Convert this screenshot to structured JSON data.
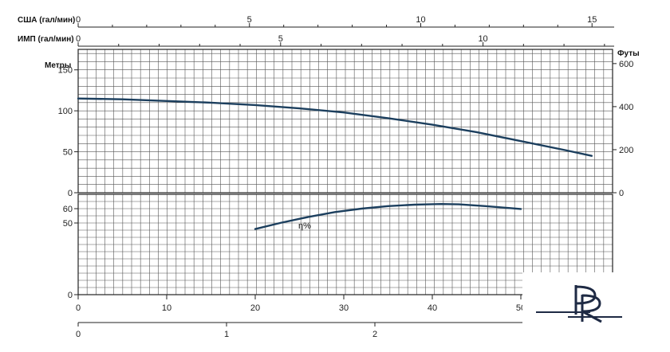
{
  "chart_data": [
    {
      "type": "line",
      "title": "",
      "ylabel_left": "Метры",
      "ylabel_right": "Футы",
      "top_axes": [
        {
          "label": "США (гал/мин)",
          "ticks": [
            0,
            5,
            10,
            15
          ],
          "range": [
            0,
            15.6
          ]
        },
        {
          "label": "ИМП (гал/мин)",
          "ticks": [
            0,
            5,
            10
          ],
          "range": [
            0,
            13.2
          ]
        }
      ],
      "bottom_axes": [
        {
          "label": "",
          "ticks": [
            0,
            10,
            20,
            30,
            40,
            50
          ],
          "range": [
            0,
            50
          ]
        },
        {
          "label": "",
          "ticks": [
            0,
            1,
            2
          ],
          "range": [
            0,
            3
          ]
        }
      ],
      "ylim": [
        0,
        175
      ],
      "yticks_left": [
        0,
        50,
        100,
        150
      ],
      "ylim_right": [
        0,
        600
      ],
      "yticks_right": [
        0,
        200,
        400,
        600
      ],
      "grid": true,
      "series": [
        {
          "x": [
            0,
            5,
            10,
            15,
            20,
            25,
            30,
            35,
            40,
            45,
            50,
            55,
            58
          ],
          "y": [
            115,
            114,
            112,
            110,
            107,
            103,
            98,
            91,
            83,
            74,
            63,
            52,
            45
          ]
        }
      ]
    },
    {
      "type": "line",
      "ylim": [
        0,
        70
      ],
      "yticks": [
        0,
        50,
        60
      ],
      "grid": true,
      "annotation": "η%",
      "series": [
        {
          "name": "η%",
          "x": [
            20,
            23,
            26,
            29,
            32,
            35,
            38,
            40,
            41,
            43,
            46,
            50
          ],
          "y": [
            45.8,
            50.3,
            54.2,
            57.6,
            60.0,
            61.8,
            62.8,
            63.1,
            63.2,
            63.0,
            61.8,
            59.8
          ]
        }
      ]
    }
  ],
  "logo_text": "PR"
}
